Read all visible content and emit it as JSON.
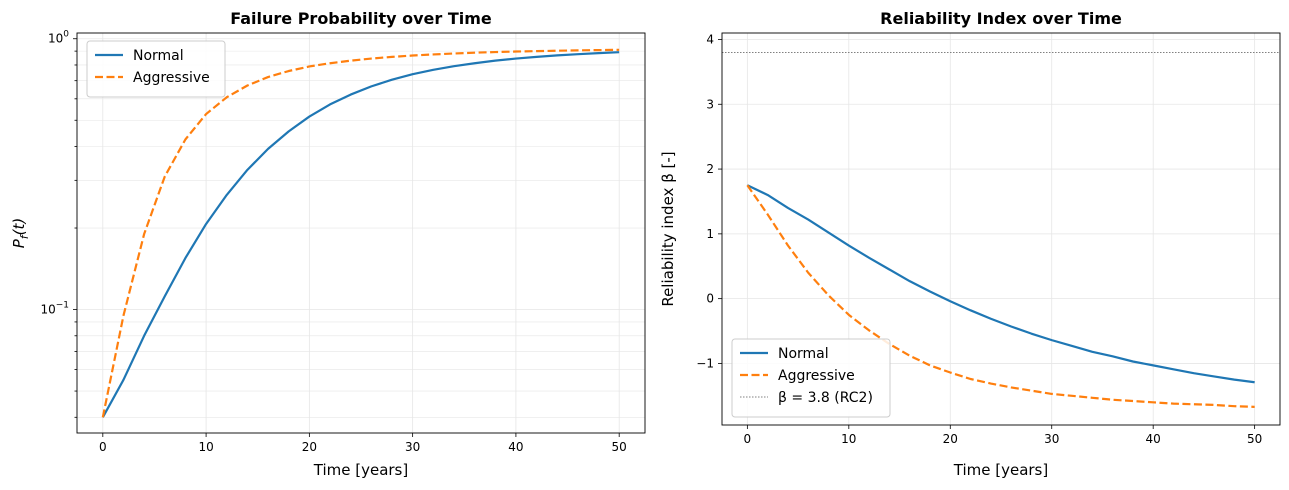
{
  "colors": {
    "normal": "#1f77b4",
    "aggressive": "#ff7f0e",
    "target": "#808080",
    "grid": "#e6e6e6"
  },
  "chart_data": [
    {
      "type": "line",
      "title": "Failure Probability over Time",
      "xlabel": "Time [years]",
      "ylabel_base": "P",
      "ylabel_sub": "f",
      "ylabel_arg": "(t)",
      "xlim": [
        -2.5,
        52.5
      ],
      "ylim": [
        0.035,
        1.05
      ],
      "yscale": "log",
      "grid": true,
      "xticks": [
        0,
        10,
        20,
        30,
        40,
        50
      ],
      "xtick_labels": [
        "0",
        "10",
        "20",
        "30",
        "40",
        "50"
      ],
      "yticks_major": [
        {
          "base": "10",
          "exp": "−1",
          "value": 0.1
        },
        {
          "base": "10",
          "exp": "0",
          "value": 1
        }
      ],
      "legend_position": "upper-left",
      "series": [
        {
          "name": "Normal",
          "style": "solid",
          "x": [
            0,
            2,
            4,
            6,
            8,
            10,
            12,
            14,
            16,
            18,
            20,
            22,
            24,
            26,
            28,
            30,
            32,
            34,
            36,
            38,
            40,
            42,
            44,
            46,
            48,
            50
          ],
          "y": [
            0.04,
            0.055,
            0.08,
            0.112,
            0.155,
            0.207,
            0.265,
            0.328,
            0.392,
            0.455,
            0.516,
            0.572,
            0.622,
            0.667,
            0.706,
            0.74,
            0.768,
            0.792,
            0.812,
            0.83,
            0.845,
            0.857,
            0.868,
            0.877,
            0.885,
            0.892
          ]
        },
        {
          "name": "Aggressive",
          "style": "dashed",
          "x": [
            0,
            2,
            4,
            6,
            8,
            10,
            12,
            14,
            16,
            18,
            20,
            22,
            24,
            26,
            28,
            30,
            32,
            34,
            36,
            38,
            40,
            42,
            44,
            46,
            48,
            50
          ],
          "y": [
            0.04,
            0.095,
            0.19,
            0.31,
            0.425,
            0.527,
            0.608,
            0.672,
            0.722,
            0.76,
            0.79,
            0.812,
            0.83,
            0.845,
            0.857,
            0.867,
            0.875,
            0.882,
            0.888,
            0.893,
            0.897,
            0.9,
            0.903,
            0.906,
            0.908,
            0.91
          ]
        }
      ]
    },
    {
      "type": "line",
      "title": "Reliability Index over Time",
      "xlabel": "Time [years]",
      "ylabel": "Reliability index β [-]",
      "xlim": [
        -2.5,
        52.5
      ],
      "ylim": [
        -1.95,
        4.1
      ],
      "grid": true,
      "xticks": [
        0,
        10,
        20,
        30,
        40,
        50
      ],
      "xtick_labels": [
        "0",
        "10",
        "20",
        "30",
        "40",
        "50"
      ],
      "yticks": [
        -1,
        0,
        1,
        2,
        3,
        4
      ],
      "ytick_labels": [
        "−1",
        "0",
        "1",
        "2",
        "3",
        "4"
      ],
      "legend_position": "lower-left",
      "series": [
        {
          "name": "Normal",
          "style": "solid",
          "x": [
            0,
            2,
            4,
            6,
            8,
            10,
            12,
            14,
            16,
            18,
            20,
            22,
            24,
            26,
            28,
            30,
            32,
            34,
            36,
            38,
            40,
            42,
            44,
            46,
            48,
            50
          ],
          "y": [
            1.75,
            1.6,
            1.4,
            1.22,
            1.02,
            0.82,
            0.63,
            0.45,
            0.27,
            0.11,
            -0.04,
            -0.18,
            -0.31,
            -0.43,
            -0.54,
            -0.64,
            -0.73,
            -0.82,
            -0.89,
            -0.97,
            -1.03,
            -1.09,
            -1.15,
            -1.2,
            -1.25,
            -1.29
          ]
        },
        {
          "name": "Aggressive",
          "style": "dashed",
          "x": [
            0,
            2,
            4,
            6,
            8,
            10,
            12,
            14,
            16,
            18,
            20,
            22,
            24,
            26,
            28,
            30,
            32,
            34,
            36,
            38,
            40,
            42,
            44,
            46,
            48,
            50
          ],
          "y": [
            1.75,
            1.3,
            0.82,
            0.4,
            0.05,
            -0.25,
            -0.49,
            -0.7,
            -0.88,
            -1.03,
            -1.14,
            -1.24,
            -1.31,
            -1.37,
            -1.42,
            -1.47,
            -1.5,
            -1.53,
            -1.56,
            -1.58,
            -1.6,
            -1.62,
            -1.63,
            -1.64,
            -1.66,
            -1.67
          ]
        },
        {
          "name": "β = 3.8 (RC2)",
          "style": "dotted",
          "x": [
            -2.5,
            52.5
          ],
          "y": [
            3.8,
            3.8
          ]
        }
      ]
    }
  ]
}
